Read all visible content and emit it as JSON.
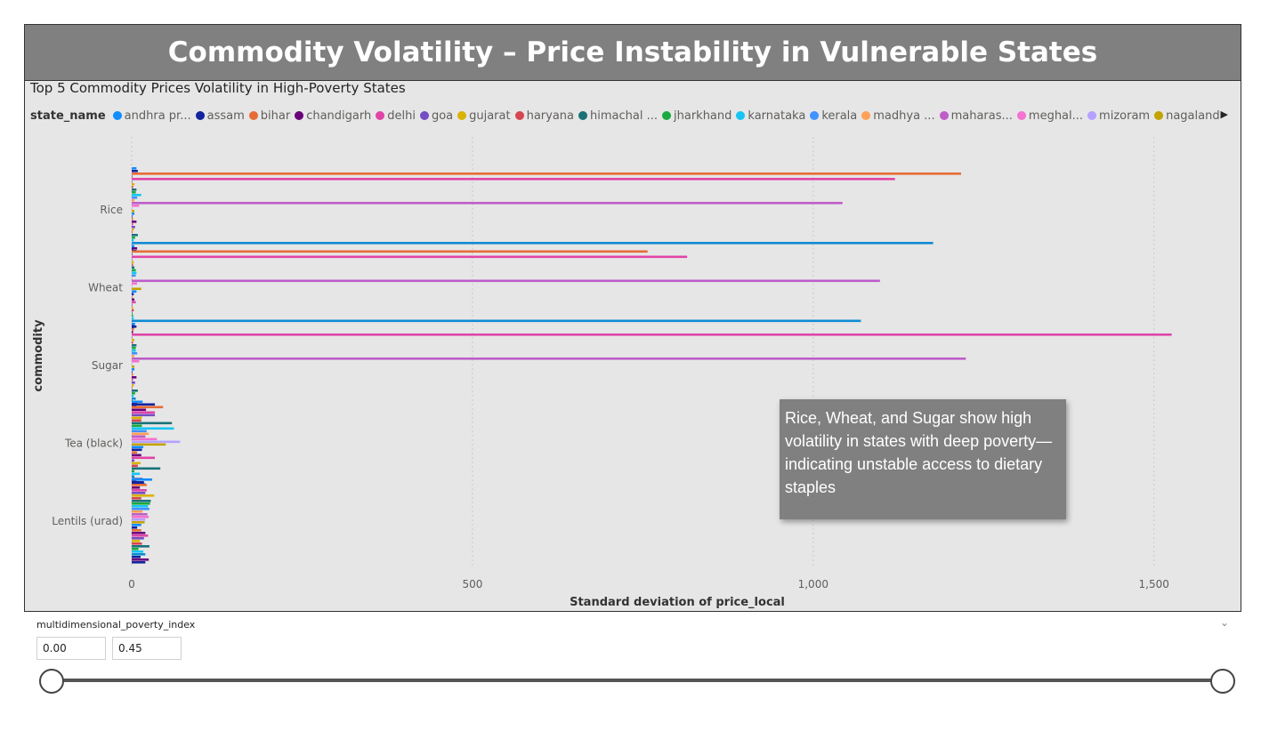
{
  "header": {
    "title": "Commodity Volatility – Price Instability in Vulnerable States"
  },
  "legend": {
    "title": "state_name",
    "items": [
      {
        "label": "andhra pr...",
        "color": "#118DFF"
      },
      {
        "label": "assam",
        "color": "#12239E"
      },
      {
        "label": "bihar",
        "color": "#E66C37"
      },
      {
        "label": "chandigarh",
        "color": "#6B007B"
      },
      {
        "label": "delhi",
        "color": "#E044A7"
      },
      {
        "label": "goa",
        "color": "#744EC2"
      },
      {
        "label": "gujarat",
        "color": "#D9B300"
      },
      {
        "label": "haryana",
        "color": "#D64550"
      },
      {
        "label": "himachal ...",
        "color": "#197278"
      },
      {
        "label": "jharkhand",
        "color": "#1AAB40"
      },
      {
        "label": "karnataka",
        "color": "#15C6F4"
      },
      {
        "label": "kerala",
        "color": "#4092FF"
      },
      {
        "label": "madhya ...",
        "color": "#FFA058"
      },
      {
        "label": "maharas...",
        "color": "#BE5DC9"
      },
      {
        "label": "meghal...",
        "color": "#F472D0"
      },
      {
        "label": "mizoram",
        "color": "#B5A1FF"
      },
      {
        "label": "nagaland",
        "color": "#C4A200"
      }
    ],
    "next_icon": "chevron-right-icon"
  },
  "chart_data": {
    "type": "bar",
    "orientation": "horizontal",
    "title": "Top 5 Commodity Prices Volatility in High-Poverty States",
    "xlabel": "Standard deviation of price_local",
    "ylabel": "commodity",
    "xlim": [
      -30,
      1640
    ],
    "x_ticks": [
      0,
      500,
      1000,
      1500
    ],
    "x_tick_labels": [
      "0",
      "500",
      "1,000",
      "1,500"
    ],
    "grid": true,
    "legend_position": "top",
    "categories": [
      "Rice",
      "Wheat",
      "Sugar",
      "Tea (black)",
      "Lentils (urad)"
    ],
    "bar_colors": [
      "#118DFF",
      "#12239E",
      "#E66C37",
      "#6B007B",
      "#E044A7",
      "#744EC2",
      "#D9B300",
      "#D64550",
      "#197278",
      "#1AAB40",
      "#15C6F4",
      "#4092FF",
      "#FFA058",
      "#BE5DC9",
      "#F472D0",
      "#B5A1FF",
      "#C4A200",
      "#118DFF",
      "#12239E",
      "#E66C37",
      "#6B007B",
      "#E044A7",
      "#744EC2",
      "#D9B300",
      "#D64550",
      "#197278",
      "#1AAB40",
      "#15C6F4",
      "#0F8CD2",
      "#12239E",
      "#6B007B",
      "#12239E"
    ],
    "values": [
      [
        7,
        9,
        1217,
        0,
        1120,
        0,
        4,
        2,
        7,
        6,
        14,
        8,
        4,
        1043,
        11,
        0,
        4,
        4,
        1,
        2,
        7,
        2,
        5,
        3,
        1,
        9,
        5,
        3,
        1176,
        0,
        8,
        7
      ],
      [
        4,
        2,
        757,
        0,
        815,
        0,
        3,
        2,
        4,
        6,
        7,
        6,
        1,
        1098,
        8,
        0,
        14,
        7,
        3,
        1,
        4,
        6,
        1,
        2,
        3,
        1,
        2,
        3,
        1070,
        0,
        4,
        3
      ],
      [
        5,
        7,
        3,
        2,
        1526,
        0,
        4,
        2,
        7,
        6,
        6,
        8,
        4,
        1224,
        11,
        0,
        4,
        4,
        1,
        2,
        7,
        2,
        5,
        3,
        1,
        9,
        5,
        3,
        6,
        0,
        8,
        7
      ],
      [
        16,
        34,
        46,
        21,
        34,
        34,
        15,
        14,
        59,
        15,
        62,
        22,
        25,
        20,
        37,
        71,
        50,
        17,
        15,
        8,
        14,
        34,
        4,
        13,
        9,
        42,
        4,
        12,
        4,
        16,
        7,
        20
      ],
      [
        30,
        18,
        22,
        12,
        22,
        20,
        33,
        14,
        28,
        27,
        24,
        26,
        16,
        23,
        25,
        20,
        19,
        14,
        8,
        14,
        20,
        24,
        18,
        12,
        15,
        26,
        10,
        17,
        20,
        13,
        25,
        20
      ]
    ]
  },
  "callout": {
    "text": "Rice, Wheat, and Sugar show high volatility in states with deep poverty—indicating unstable access to dietary staples"
  },
  "slicer": {
    "title": "multidimensional_poverty_index",
    "min_value": "0.00",
    "max_value": "0.45",
    "range": [
      0.0,
      0.45
    ]
  }
}
